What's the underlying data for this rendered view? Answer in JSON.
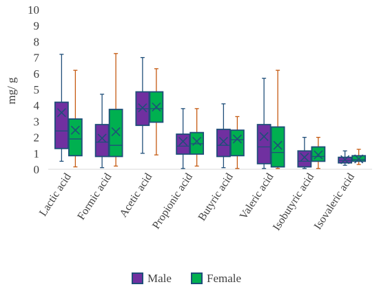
{
  "chart_data": {
    "type": "box",
    "ylabel": "mg/ g",
    "ylim": [
      0,
      10
    ],
    "yticks": [
      0,
      1,
      2,
      3,
      4,
      5,
      6,
      7,
      8,
      9,
      10
    ],
    "grid": false,
    "legend_position": "bottom",
    "categories": [
      "Lactic acid",
      "Formic acid",
      "Acetic acid",
      "Propionic acid",
      "Butyric acid",
      "Valeric acid",
      "Isobutyric acid",
      "Isovaleric acid"
    ],
    "series": [
      {
        "name": "Male",
        "fill": "#7030A0",
        "border": "#1F4E79",
        "whisker": "#1F4E79",
        "boxes": [
          {
            "min": 0.5,
            "q1": 1.3,
            "median": 2.4,
            "mean": 3.55,
            "q3": 4.2,
            "max": 7.2
          },
          {
            "min": 0.1,
            "q1": 0.8,
            "median": 1.7,
            "mean": 1.95,
            "q3": 2.8,
            "max": 4.7
          },
          {
            "min": 1.0,
            "q1": 2.75,
            "median": 3.8,
            "mean": 3.85,
            "q3": 4.85,
            "max": 7.0
          },
          {
            "min": 0.05,
            "q1": 0.95,
            "median": 1.45,
            "mean": 1.75,
            "q3": 2.2,
            "max": 3.8
          },
          {
            "min": 0.1,
            "q1": 0.8,
            "median": 1.5,
            "mean": 1.75,
            "q3": 2.5,
            "max": 4.1
          },
          {
            "min": 0.05,
            "q1": 0.35,
            "median": 1.4,
            "mean": 2.05,
            "q3": 2.8,
            "max": 5.7
          },
          {
            "min": 0.05,
            "q1": 0.15,
            "median": 0.5,
            "mean": 0.75,
            "q3": 1.15,
            "max": 2.0
          },
          {
            "min": 0.25,
            "q1": 0.4,
            "median": 0.55,
            "mean": 0.6,
            "q3": 0.75,
            "max": 1.15
          }
        ]
      },
      {
        "name": "Female",
        "fill": "#00B050",
        "border": "#1F4E79",
        "whisker": "#C55A11",
        "boxes": [
          {
            "min": 0.15,
            "q1": 0.85,
            "median": 1.9,
            "mean": 2.45,
            "q3": 3.15,
            "max": 6.2
          },
          {
            "min": 0.2,
            "q1": 0.8,
            "median": 1.5,
            "mean": 2.35,
            "q3": 3.75,
            "max": 7.25
          },
          {
            "min": 0.9,
            "q1": 2.95,
            "median": 3.8,
            "mean": 3.9,
            "q3": 4.85,
            "max": 6.3
          },
          {
            "min": 0.2,
            "q1": 0.95,
            "median": 1.6,
            "mean": 1.75,
            "q3": 2.3,
            "max": 3.8
          },
          {
            "min": 0.05,
            "q1": 0.85,
            "median": 1.85,
            "mean": 1.9,
            "q3": 2.45,
            "max": 3.3
          },
          {
            "min": 0.05,
            "q1": 0.15,
            "median": 1.05,
            "mean": 1.5,
            "q3": 2.65,
            "max": 6.2
          },
          {
            "min": 0.05,
            "q1": 0.5,
            "median": 0.8,
            "mean": 0.9,
            "q3": 1.4,
            "max": 2.0
          },
          {
            "min": 0.3,
            "q1": 0.5,
            "median": 0.6,
            "mean": 0.65,
            "q3": 0.85,
            "max": 1.25
          }
        ]
      }
    ]
  }
}
